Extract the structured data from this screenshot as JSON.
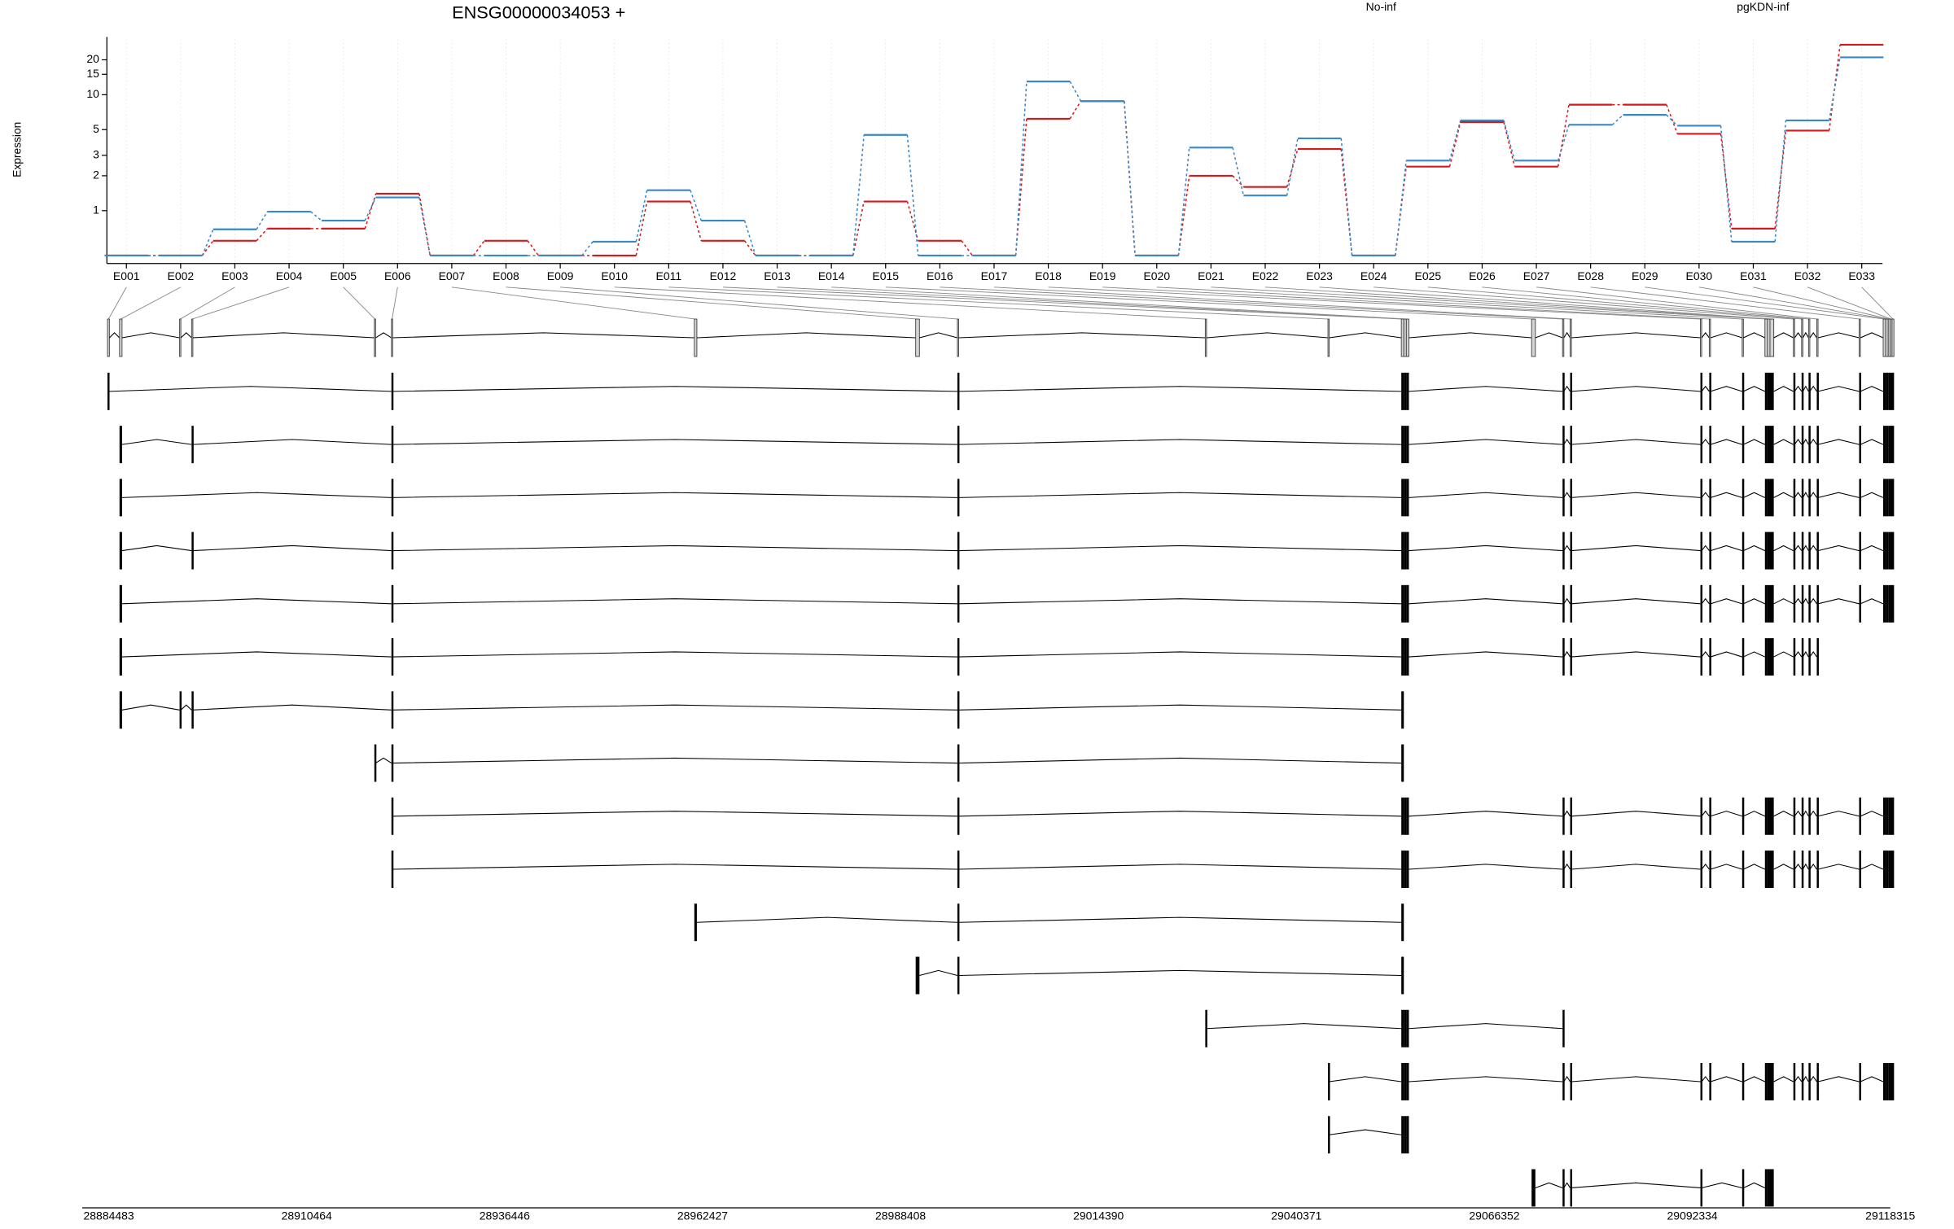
{
  "chart_data": [
    {
      "type": "line",
      "title": "ENSG00000034053 +",
      "y_label": "Expression",
      "categories": [
        "E001",
        "E002",
        "E003",
        "E004",
        "E005",
        "E006",
        "E007",
        "E008",
        "E009",
        "E010",
        "E011",
        "E012",
        "E013",
        "E014",
        "E015",
        "E016",
        "E017",
        "E018",
        "E019",
        "E020",
        "E021",
        "E022",
        "E023",
        "E024",
        "E025",
        "E026",
        "E027",
        "E028",
        "E029",
        "E030",
        "E031",
        "E032",
        "E033"
      ],
      "series": [
        {
          "name": "No-inf",
          "color": "#d7191c",
          "values": [
            0.41,
            0.41,
            0.55,
            0.7,
            0.7,
            1.4,
            0.41,
            0.55,
            0.41,
            0.41,
            1.2,
            0.55,
            0.41,
            0.41,
            1.2,
            0.55,
            0.41,
            6.2,
            8.8,
            0.41,
            2.0,
            1.6,
            3.4,
            0.41,
            2.4,
            5.8,
            2.4,
            8.2,
            8.2,
            4.6,
            0.7,
            4.9,
            27
          ]
        },
        {
          "name": "pgKDN-inf",
          "color": "#3a87c8",
          "values": [
            0.41,
            0.41,
            0.69,
            0.98,
            0.82,
            1.3,
            0.41,
            0.41,
            0.41,
            0.54,
            1.5,
            0.82,
            0.41,
            0.41,
            4.5,
            0.41,
            0.41,
            13,
            8.8,
            0.41,
            3.5,
            1.35,
            4.2,
            0.41,
            2.7,
            6.0,
            2.7,
            5.5,
            6.7,
            5.4,
            0.54,
            6.0,
            21
          ]
        }
      ],
      "ylim": [
        0.35,
        30
      ],
      "yticks": [
        1,
        2,
        3,
        5,
        10,
        15,
        20
      ],
      "log_scale": true,
      "grid": true
    },
    {
      "type": "gene_model",
      "xlim": [
        28880997,
        29119000
      ],
      "xticks": [
        28884483,
        28910464,
        28936446,
        28962427,
        28988408,
        29014390,
        29040371,
        29066352,
        29092334,
        29118315
      ],
      "exons": [
        [
          28884317,
          28884566
        ],
        [
          28885894,
          28886226
        ],
        [
          28893779,
          28893945
        ],
        [
          28895356,
          28895522
        ],
        [
          28919343,
          28919509
        ],
        [
          28921584,
          28921750
        ],
        [
          28961341,
          28961673
        ],
        [
          28990391,
          28990889
        ],
        [
          28995869,
          28996035
        ],
        [
          29028405,
          29028571
        ],
        [
          29044507,
          29044673
        ],
        [
          29054135,
          29054467
        ],
        [
          29054467,
          29054799
        ],
        [
          29054799,
          29055131
        ],
        [
          29071233,
          29071731
        ],
        [
          29075300,
          29075466
        ],
        [
          29076296,
          29076462
        ],
        [
          29093394,
          29093560
        ],
        [
          29094556,
          29094722
        ],
        [
          29098872,
          29099038
        ],
        [
          29101860,
          29102192
        ],
        [
          29102192,
          29102524
        ],
        [
          29102524,
          29103022
        ],
        [
          29105595,
          29105761
        ],
        [
          29106674,
          29106840
        ],
        [
          29107587,
          29107753
        ],
        [
          29108666,
          29108832
        ],
        [
          29114227,
          29114393
        ],
        [
          29117381,
          29117713
        ],
        [
          29117713,
          29118045
        ],
        [
          29118045,
          29118294
        ],
        [
          29118294,
          29118543
        ],
        [
          29118543,
          29118792
        ]
      ],
      "transcripts": [
        [
          0,
          5,
          8,
          11,
          12,
          13,
          15,
          16,
          17,
          18,
          19,
          20,
          21,
          22,
          23,
          24,
          25,
          26,
          27,
          28,
          29,
          30,
          31,
          32
        ],
        [
          1,
          3,
          5,
          8,
          11,
          12,
          13,
          15,
          16,
          17,
          18,
          19,
          20,
          21,
          22,
          23,
          24,
          25,
          26,
          27,
          28,
          29,
          30,
          31,
          32
        ],
        [
          1,
          5,
          8,
          11,
          12,
          13,
          15,
          16,
          17,
          18,
          19,
          20,
          21,
          22,
          23,
          24,
          25,
          26,
          27,
          28,
          29,
          30,
          31,
          32
        ],
        [
          1,
          3,
          5,
          8,
          11,
          12,
          13,
          15,
          16,
          17,
          18,
          19,
          20,
          21,
          22,
          23,
          24,
          25,
          26,
          27,
          28,
          29,
          30,
          31,
          32
        ],
        [
          1,
          5,
          8,
          11,
          12,
          13,
          15,
          16,
          17,
          18,
          19,
          20,
          21,
          22,
          23,
          24,
          25,
          26,
          27,
          28,
          29,
          30,
          31,
          32
        ],
        [
          1,
          5,
          8,
          11,
          12,
          13,
          15,
          16,
          17,
          18,
          19,
          20,
          21,
          22,
          23,
          24,
          25,
          26
        ],
        [
          1,
          2,
          3,
          5,
          8,
          11
        ],
        [
          4,
          5,
          8,
          11
        ],
        [
          5,
          8,
          11,
          12,
          13,
          15,
          16,
          17,
          18,
          19,
          20,
          21,
          22,
          23,
          24,
          25,
          26,
          27,
          28,
          29,
          30,
          31,
          32
        ],
        [
          5,
          8,
          11,
          12,
          13,
          15,
          16,
          17,
          18,
          19,
          20,
          21,
          22,
          23,
          24,
          25,
          26,
          27,
          28,
          29,
          30,
          31,
          32
        ],
        [
          6,
          8,
          11
        ],
        [
          7,
          8,
          11
        ],
        [
          9,
          11,
          12,
          13,
          15
        ],
        [
          10,
          11,
          12,
          13,
          15,
          16,
          17,
          18,
          19,
          20,
          21,
          22,
          23,
          24,
          25,
          26,
          27,
          28,
          29,
          30,
          31,
          32
        ],
        [
          10,
          11,
          12,
          13
        ],
        [
          14,
          15,
          16,
          17,
          19,
          20,
          21,
          22
        ]
      ]
    }
  ]
}
